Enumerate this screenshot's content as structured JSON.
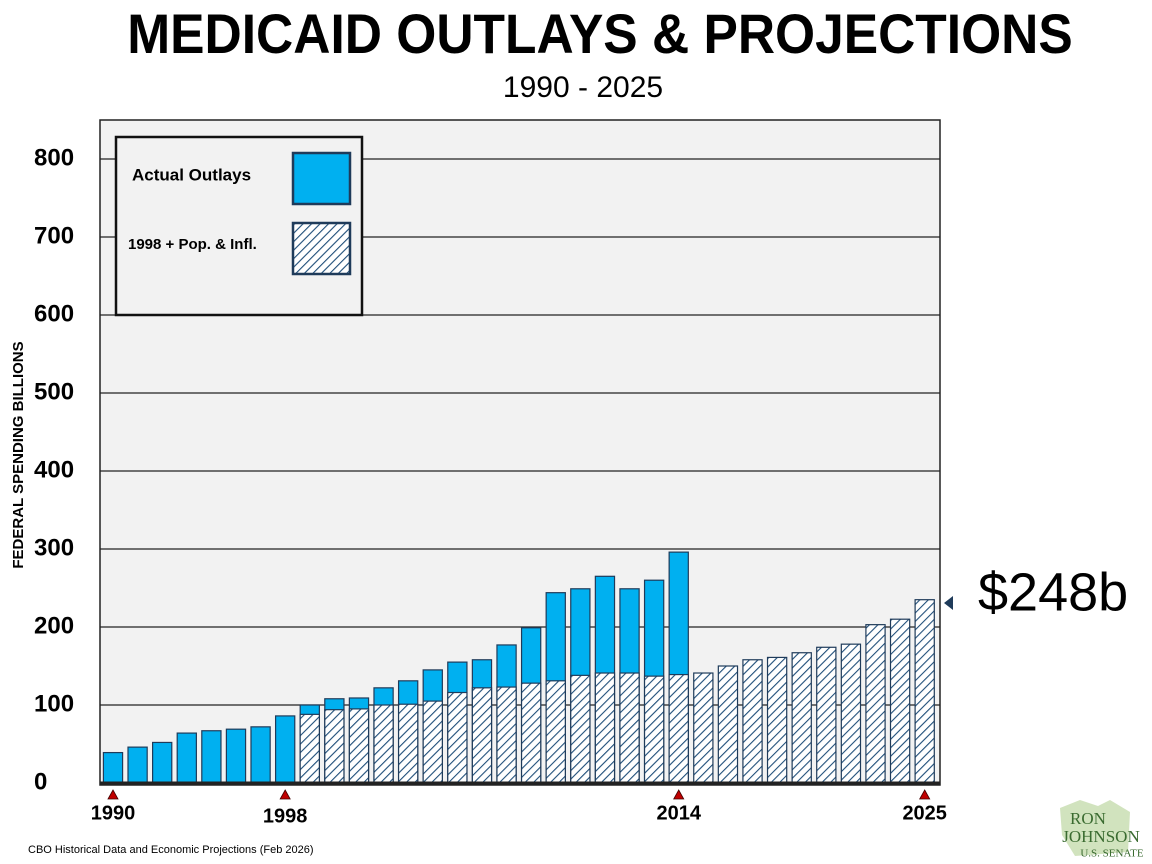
{
  "chart_data": {
    "type": "bar",
    "title": "MEDICAID OUTLAYS & PROJECTIONS",
    "subtitle": "1990 - 2025",
    "y_label": "FEDERAL SPENDING BILLIONS",
    "annotation": "$248b",
    "source": "CBO Historical Data and Economic Projections (Feb 2026)",
    "logo": {
      "line1": "RON",
      "line2": "JOHNSON",
      "line3": "U.S. SENATE"
    },
    "categories": [
      "1990",
      null,
      null,
      null,
      null,
      null,
      null,
      "1998",
      null,
      null,
      null,
      null,
      null,
      null,
      null,
      null,
      null,
      null,
      null,
      null,
      null,
      null,
      null,
      "2014",
      null,
      null,
      null,
      null,
      null,
      null,
      null,
      null,
      null,
      "2025"
    ],
    "series": [
      {
        "name": "Actual Outlays",
        "color": "#00b0f0",
        "pattern": "solid",
        "values": [
          39,
          46,
          52,
          64,
          67,
          69,
          72,
          86,
          100,
          108,
          109,
          122,
          131,
          145,
          155,
          158,
          177,
          199,
          244,
          249,
          265,
          249,
          260,
          296,
          null,
          null,
          null,
          null,
          null,
          null,
          null,
          null,
          null,
          null
        ]
      },
      {
        "name": "1998 + Pop. & Infl.",
        "color": "#1f4e79",
        "pattern": "hatch",
        "values": [
          null,
          null,
          null,
          null,
          null,
          null,
          null,
          null,
          88,
          94,
          95,
          100,
          101,
          105,
          116,
          122,
          123,
          128,
          131,
          138,
          141,
          141,
          137,
          139,
          141,
          150,
          158,
          161,
          167,
          174,
          178,
          203,
          210,
          235
        ]
      }
    ],
    "ylim": [
      0,
      850
    ],
    "yticks": [
      0,
      100,
      200,
      300,
      400,
      500,
      600,
      700,
      800
    ],
    "grid": true,
    "legend": "upper left"
  }
}
